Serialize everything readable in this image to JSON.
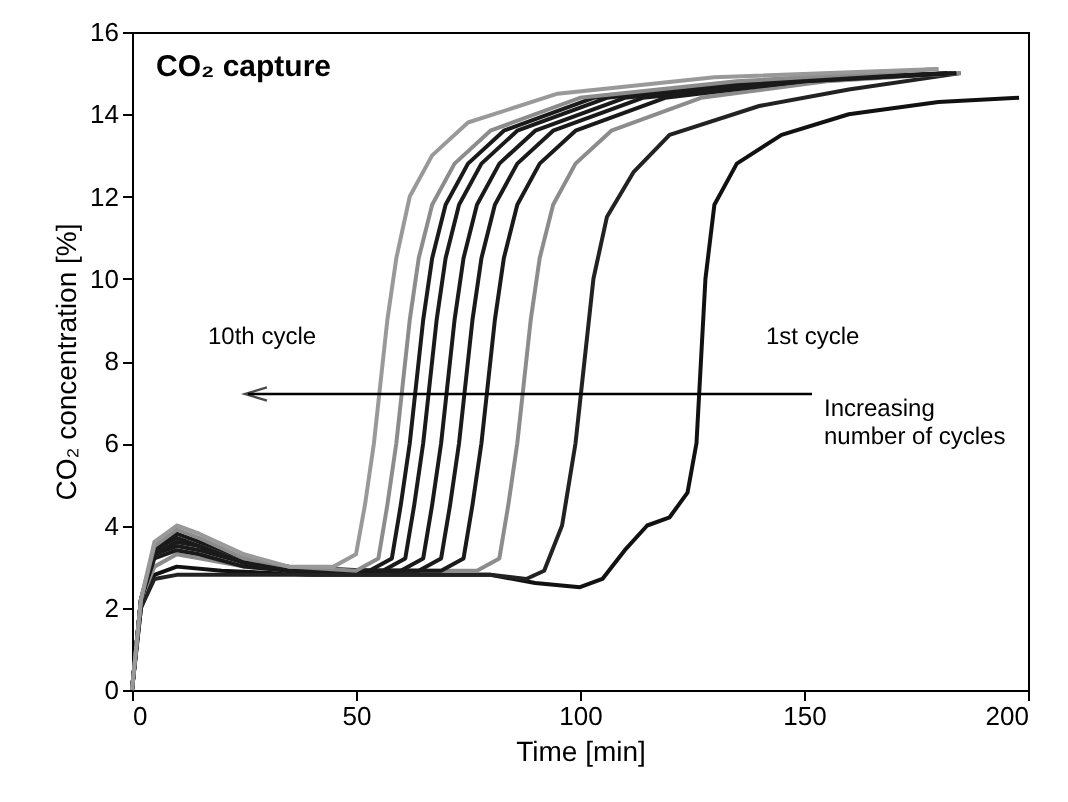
{
  "chart_data": {
    "type": "line",
    "xlabel": "Time [min]",
    "ylabel": "CO₂ concentration [%]",
    "xlim": [
      0,
      200
    ],
    "xticks": [
      0,
      50,
      100,
      150,
      200
    ],
    "ylim": [
      0,
      16
    ],
    "yticks": [
      0,
      2,
      4,
      6,
      8,
      10,
      12,
      14,
      16
    ],
    "grid": false,
    "marker": "none",
    "line_style": "solid",
    "annotations": [
      "CO₂ capture",
      "10th cycle",
      "1st cycle",
      "Increasing number of cycles"
    ],
    "series": [
      {
        "color": "#111111",
        "x": [
          0,
          2,
          5,
          10,
          20,
          40,
          60,
          80,
          90,
          100,
          105,
          110,
          115,
          120,
          124,
          126,
          127,
          128,
          130,
          135,
          145,
          160,
          180,
          198
        ],
        "values": [
          0,
          2,
          2.8,
          3.0,
          2.9,
          2.8,
          2.8,
          2.8,
          2.6,
          2.5,
          2.7,
          3.4,
          4.0,
          4.2,
          4.8,
          6,
          8,
          10,
          11.8,
          12.8,
          13.5,
          14,
          14.3,
          14.4
        ]
      },
      {
        "color": "#222222",
        "x": [
          0,
          2,
          5,
          10,
          30,
          60,
          80,
          88,
          92,
          96,
          99,
          101,
          103,
          106,
          112,
          120,
          140,
          160,
          185
        ],
        "values": [
          0,
          2,
          2.7,
          2.8,
          2.8,
          2.8,
          2.8,
          2.7,
          2.9,
          4,
          6,
          8,
          10,
          11.5,
          12.6,
          13.5,
          14.2,
          14.6,
          15
        ]
      },
      {
        "color": "#8c8c8c",
        "x": [
          0,
          2,
          5,
          10,
          15,
          25,
          35,
          77,
          82,
          84,
          86,
          87,
          89,
          91,
          94,
          99,
          107,
          127,
          155,
          185
        ],
        "values": [
          0,
          2.2,
          3.0,
          3.3,
          3.2,
          3.0,
          2.9,
          2.9,
          3.2,
          4.5,
          6,
          7,
          9,
          10.5,
          11.8,
          12.8,
          13.6,
          14.4,
          14.8,
          15.0
        ]
      },
      {
        "color": "#1a1a1a",
        "x": [
          0,
          2,
          5,
          10,
          15,
          25,
          35,
          69,
          74,
          76,
          78,
          79,
          81,
          83,
          86,
          91,
          99,
          119,
          150,
          184
        ],
        "values": [
          0,
          2.2,
          3.2,
          3.4,
          3.3,
          3.0,
          2.9,
          2.9,
          3.2,
          4.5,
          6,
          7,
          9,
          10.5,
          11.8,
          12.8,
          13.6,
          14.4,
          14.8,
          15.0
        ]
      },
      {
        "color": "#1a1a1a",
        "x": [
          0,
          2,
          5,
          10,
          15,
          25,
          35,
          64,
          69,
          71,
          73,
          74,
          76,
          78,
          81,
          86,
          94,
          114,
          150,
          184
        ],
        "values": [
          0,
          2.2,
          3.3,
          3.5,
          3.4,
          3.1,
          2.9,
          2.9,
          3.2,
          4.5,
          6,
          7,
          9,
          10.5,
          11.8,
          12.8,
          13.6,
          14.4,
          14.8,
          15.0
        ]
      },
      {
        "color": "#1a1a1a",
        "x": [
          0,
          2,
          5,
          10,
          15,
          25,
          35,
          60,
          65,
          67,
          69,
          70,
          72,
          74,
          77,
          82,
          90,
          110,
          145,
          183
        ],
        "values": [
          0,
          2.2,
          3.3,
          3.6,
          3.5,
          3.1,
          2.9,
          2.9,
          3.2,
          4.5,
          6,
          7,
          9,
          10.5,
          11.8,
          12.8,
          13.6,
          14.4,
          14.8,
          15.0
        ]
      },
      {
        "color": "#1a1a1a",
        "x": [
          0,
          2,
          5,
          10,
          15,
          25,
          35,
          56,
          61,
          63,
          65,
          66,
          68,
          70,
          73,
          78,
          86,
          106,
          140,
          182
        ],
        "values": [
          0,
          2.2,
          3.4,
          3.7,
          3.5,
          3.1,
          2.9,
          2.9,
          3.2,
          4.5,
          6,
          7,
          9,
          10.5,
          11.8,
          12.8,
          13.6,
          14.4,
          14.8,
          15.0
        ]
      },
      {
        "color": "#1a1a1a",
        "x": [
          0,
          2,
          5,
          10,
          15,
          25,
          35,
          53,
          58,
          60,
          62,
          63,
          65,
          67,
          70,
          75,
          83,
          103,
          140,
          182
        ],
        "values": [
          0,
          2.2,
          3.4,
          3.8,
          3.6,
          3.2,
          3.0,
          2.9,
          3.2,
          4.5,
          6,
          7,
          9,
          10.5,
          11.8,
          12.8,
          13.6,
          14.4,
          14.8,
          15.0
        ]
      },
      {
        "color": "#8c8c8c",
        "x": [
          0,
          2,
          5,
          10,
          15,
          25,
          35,
          50,
          55,
          57,
          59,
          60,
          62,
          64,
          67,
          72,
          80,
          100,
          135,
          180
        ],
        "values": [
          0,
          2.2,
          3.5,
          3.9,
          3.7,
          3.2,
          3.0,
          2.9,
          3.2,
          4.5,
          6,
          7,
          9,
          10.5,
          11.8,
          12.8,
          13.6,
          14.4,
          14.8,
          15.1
        ]
      },
      {
        "color": "#999999",
        "x": [
          0,
          2,
          5,
          10,
          15,
          25,
          35,
          45,
          50,
          52,
          54,
          55,
          57,
          59,
          62,
          67,
          75,
          95,
          130,
          180
        ],
        "values": [
          0,
          2.2,
          3.6,
          4.0,
          3.8,
          3.3,
          3.0,
          3.0,
          3.3,
          4.5,
          6,
          7,
          9,
          10.5,
          12.0,
          13.0,
          13.8,
          14.5,
          14.9,
          15.1
        ]
      }
    ]
  }
}
